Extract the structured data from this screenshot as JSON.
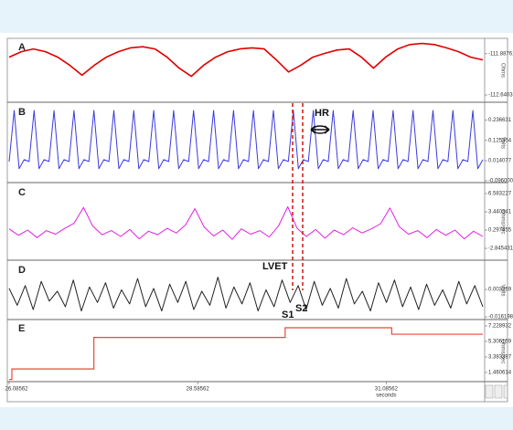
{
  "chart_data": [
    {
      "type": "line",
      "title": "A",
      "y_label": "Ohms",
      "color": "#e00000",
      "ylim": [
        -112.74,
        -111.64
      ],
      "yticks": [
        {
          "value": -111.88761,
          "label": "-111.88761"
        },
        {
          "value": -112.64038,
          "label": "-112.640380"
        }
      ],
      "values": [
        -111.95,
        -111.85,
        -111.8,
        -111.85,
        -111.95,
        -112.1,
        -112.28,
        -112.1,
        -111.95,
        -111.85,
        -111.78,
        -111.76,
        -111.8,
        -111.95,
        -112.15,
        -112.3,
        -112.1,
        -111.95,
        -111.85,
        -111.8,
        -111.78,
        -111.8,
        -112.0,
        -112.22,
        -112.1,
        -111.95,
        -111.88,
        -111.82,
        -111.8,
        -111.95,
        -112.15,
        -111.95,
        -111.8,
        -111.72,
        -111.7,
        -111.72,
        -111.78,
        -111.85,
        -111.95,
        -112.0
      ]
    },
    {
      "type": "line",
      "title": "B",
      "y_label": "Volts",
      "color": "#3a3adf",
      "annotations": [
        "HR"
      ],
      "ylim": [
        -0.096,
        0.32
      ],
      "yticks": [
        0.236631,
        0.125354,
        0.014077,
        {
          "value": -0.096,
          "label": "-0.096000"
        }
      ],
      "values": [
        0.01,
        0.29,
        -0.03,
        0.02,
        0.01,
        0.29,
        -0.03,
        0.02,
        0.01,
        0.29,
        -0.03,
        0.02,
        0.01,
        0.29,
        -0.03,
        0.02,
        0.01,
        0.29,
        -0.03,
        0.02,
        0.01,
        0.29,
        -0.03,
        0.02,
        0.01,
        0.29,
        -0.03,
        0.02,
        0.01,
        0.29,
        -0.03,
        0.02,
        0.01,
        0.29,
        -0.03,
        0.02,
        0.01,
        0.29,
        -0.03,
        0.02,
        0.01,
        0.29,
        -0.03,
        0.02,
        0.01,
        0.29,
        -0.03,
        0.02,
        0.01,
        0.29,
        -0.03,
        0.02,
        0.01,
        0.29,
        -0.03,
        0.02,
        0.01,
        0.29,
        -0.03,
        0.02,
        0.01,
        0.29,
        -0.03,
        0.02,
        0.01,
        0.29,
        -0.03,
        0.02,
        0.01,
        0.29,
        -0.03,
        0.02,
        0.01,
        0.29,
        -0.03,
        0.02,
        0.01,
        0.29,
        -0.03,
        0.02,
        0.01,
        0.29,
        -0.03,
        0.02,
        0.01,
        0.29,
        -0.03,
        0.02,
        0.01,
        0.29,
        -0.03,
        0.02,
        0.01,
        0.29,
        -0.03,
        0.02
      ]
    },
    {
      "type": "line",
      "title": "C",
      "y_label": "Ohms/sec",
      "color": "#e020e0",
      "ylim": [
        -4.57,
        8.0
      ],
      "yticks": [
        6.583227,
        3.440341,
        0.297455,
        -2.845431
      ],
      "values": [
        0.5,
        -0.6,
        0.3,
        -1.0,
        0.2,
        -0.4,
        0.6,
        1.5,
        4.2,
        1.0,
        -0.5,
        0.2,
        -0.8,
        0.4,
        -1.2,
        0.1,
        -0.5,
        0.6,
        -0.2,
        1.2,
        4.0,
        0.8,
        -0.7,
        0.3,
        -1.3,
        0.5,
        -0.4,
        0.2,
        -0.9,
        1.0,
        4.3,
        0.6,
        -0.8,
        0.4,
        -1.1,
        0.3,
        -0.5,
        0.7,
        -0.2,
        0.5,
        1.4,
        4.1,
        0.9,
        -0.4,
        0.2,
        -1.0,
        0.4,
        -0.6,
        0.3,
        -1.2,
        0.1,
        -0.8
      ]
    },
    {
      "type": "line",
      "title": "D",
      "y_label": "Volts",
      "color": "#222222",
      "annotations": [
        "LVET",
        "S1",
        "S2"
      ],
      "ylim": [
        -0.0168,
        0.0221
      ],
      "yticks": [
        0.003269,
        -0.016198
      ],
      "values": [
        0.004,
        -0.008,
        0.006,
        -0.011,
        0.009,
        -0.005,
        0.002,
        -0.009,
        0.01,
        -0.012,
        0.005,
        -0.006,
        0.008,
        -0.01,
        0.003,
        -0.007,
        0.011,
        -0.009,
        0.004,
        -0.012,
        0.007,
        -0.006,
        0.009,
        -0.011,
        0.002,
        -0.008,
        0.012,
        -0.01,
        0.005,
        -0.007,
        0.008,
        -0.012,
        0.003,
        -0.009,
        0.01,
        -0.006,
        0.006,
        -0.011,
        0.009,
        -0.008,
        0.004,
        -0.01,
        0.011,
        -0.007,
        0.002,
        -0.012,
        0.008,
        -0.006,
        0.01,
        -0.009,
        0.005,
        -0.011,
        0.007,
        -0.008,
        0.003,
        -0.01,
        0.009,
        -0.007,
        0.006,
        -0.009
      ]
    },
    {
      "type": "step",
      "title": "E",
      "y_label": "Ohms/sec",
      "color": "#e8483c",
      "ylim": [
        0.33,
        7.79
      ],
      "yticks": [
        7.228932,
        5.306159,
        3.383387,
        1.460614
      ],
      "xlim": [
        26.08562,
        32.366
      ],
      "xticks": [
        26.08562,
        28.58562,
        31.08562
      ],
      "x_label": "seconds",
      "x": [
        26.08562,
        26.122,
        27.209,
        29.745,
        31.158,
        32.366
      ],
      "values": [
        0.6,
        1.9,
        5.8,
        7.0,
        6.2,
        6.2
      ]
    }
  ]
}
